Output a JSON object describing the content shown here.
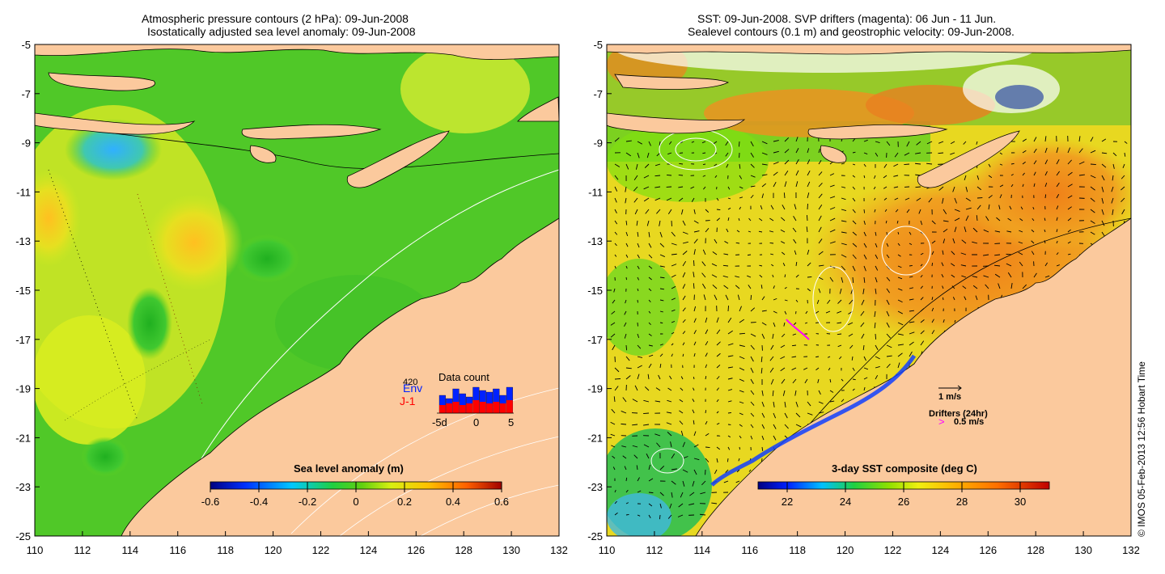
{
  "left_panel": {
    "title_line1": "Atmospheric pressure contours (2 hPa): 09-Jun-2008",
    "title_line2": "Isostatically adjusted sea level anomaly: 09-Jun-2008",
    "colorbar": {
      "label": "Sea level anomaly (m)",
      "ticks": [
        "-0.6",
        "-0.4",
        "-0.2",
        "0",
        "0.2",
        "0.4",
        "0.6"
      ],
      "min": -0.6,
      "max": 0.6
    },
    "data_count": {
      "title": "Data count",
      "max_label": "420",
      "series1": "Env",
      "series2": "J-1",
      "axis_ticks": [
        "-5d",
        "0",
        "5"
      ],
      "env_color": "#0022ff",
      "j1_color": "#ff0000"
    }
  },
  "right_panel": {
    "title_line1": "SST: 09-Jun-2008. SVP drifters (magenta): 06 Jun - 11 Jun.",
    "title_line2": "Sealevel contours (0.1 m) and geostrophic velocity: 09-Jun-2008.",
    "colorbar": {
      "label": "3-day SST composite (deg C)",
      "ticks": [
        "22",
        "24",
        "26",
        "28",
        "30"
      ],
      "min": 21,
      "max": 31
    },
    "velocity_scale_label": "1 m/s",
    "drifters_label": "Drifters (24hr)",
    "drifter_speed_label": "0.5 m/s"
  },
  "axes": {
    "lat_ticks": [
      "-5",
      "-7",
      "-9",
      "-11",
      "-13",
      "-15",
      "-17",
      "-19",
      "-21",
      "-23",
      "-25"
    ],
    "lon_ticks": [
      "110",
      "112",
      "114",
      "116",
      "118",
      "120",
      "122",
      "124",
      "126",
      "128",
      "130",
      "132"
    ]
  },
  "colors": {
    "land": "#fbc99d",
    "ocean_green": "#44cc22",
    "ocean_yellow": "#e6f020",
    "sst_orange": "#f0a020",
    "drifter": "#ff00ff"
  },
  "credit": "© IMOS 05-Feb-2013 12:56 Hobart Time"
}
